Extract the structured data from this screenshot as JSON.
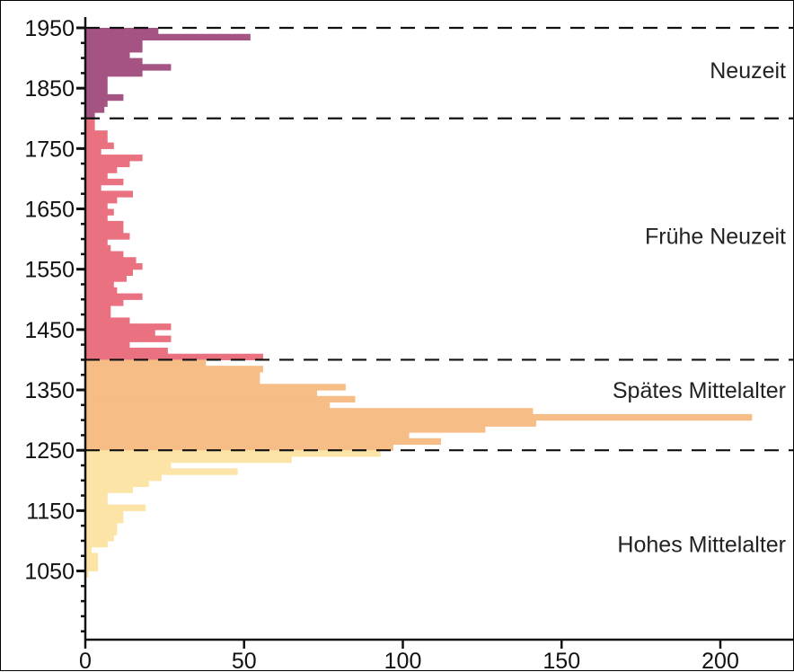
{
  "chart_data": {
    "type": "bar",
    "orientation": "horizontal",
    "bin_years": 10,
    "y_axis_ticks": [
      "1950",
      "1850",
      "1750",
      "1650",
      "1550",
      "1450",
      "1350",
      "1250",
      "1150",
      "1050"
    ],
    "x_axis_ticks": [
      "0",
      "50",
      "100",
      "150",
      "200"
    ],
    "xlim": [
      0,
      220
    ],
    "ylim": [
      940,
      1950
    ],
    "period_boundaries": [
      1800,
      1400,
      1250,
      1950
    ],
    "colors": {
      "Neuzeit": "#a45383",
      "Frühe Neuzeit": "#ea7180",
      "Spätes Mittelalter": "#f7bd86",
      "Hohes Mittelalter": "#fbe4a6"
    },
    "series": [
      {
        "name": "Neuzeit",
        "label": "Neuzeit",
        "label_year": 1880,
        "bins": [
          [
            1945,
            23
          ],
          [
            1935,
            52
          ],
          [
            1925,
            18
          ],
          [
            1915,
            18
          ],
          [
            1905,
            14
          ],
          [
            1895,
            18
          ],
          [
            1885,
            27
          ],
          [
            1875,
            18
          ],
          [
            1865,
            7
          ],
          [
            1855,
            7
          ],
          [
            1845,
            7
          ],
          [
            1835,
            12
          ],
          [
            1825,
            7
          ],
          [
            1815,
            6
          ],
          [
            1805,
            3
          ]
        ]
      },
      {
        "name": "Frühe Neuzeit",
        "label": "Frühe Neuzeit",
        "label_year": 1605,
        "bins": [
          [
            1795,
            3
          ],
          [
            1785,
            3
          ],
          [
            1775,
            7
          ],
          [
            1765,
            7
          ],
          [
            1755,
            9
          ],
          [
            1745,
            5
          ],
          [
            1735,
            18
          ],
          [
            1725,
            14
          ],
          [
            1715,
            10
          ],
          [
            1705,
            7
          ],
          [
            1695,
            12
          ],
          [
            1685,
            5
          ],
          [
            1675,
            15
          ],
          [
            1665,
            10
          ],
          [
            1655,
            7
          ],
          [
            1645,
            9
          ],
          [
            1635,
            7
          ],
          [
            1625,
            12
          ],
          [
            1615,
            12
          ],
          [
            1605,
            14
          ],
          [
            1595,
            7
          ],
          [
            1585,
            8
          ],
          [
            1575,
            12
          ],
          [
            1565,
            16
          ],
          [
            1555,
            18
          ],
          [
            1545,
            15
          ],
          [
            1535,
            13
          ],
          [
            1525,
            9
          ],
          [
            1515,
            10
          ],
          [
            1505,
            18
          ],
          [
            1495,
            12
          ],
          [
            1485,
            8
          ],
          [
            1475,
            8
          ],
          [
            1465,
            14
          ],
          [
            1455,
            27
          ],
          [
            1445,
            22
          ],
          [
            1435,
            27
          ],
          [
            1425,
            14
          ],
          [
            1415,
            26
          ],
          [
            1405,
            56
          ]
        ]
      },
      {
        "name": "Spätes Mittelalter",
        "label": "Spätes Mittelalter",
        "label_year": 1350,
        "bins": [
          [
            1395,
            38
          ],
          [
            1385,
            56
          ],
          [
            1375,
            55
          ],
          [
            1365,
            55
          ],
          [
            1355,
            82
          ],
          [
            1345,
            73
          ],
          [
            1335,
            85
          ],
          [
            1325,
            77
          ],
          [
            1315,
            141
          ],
          [
            1305,
            210
          ],
          [
            1295,
            142
          ],
          [
            1285,
            126
          ],
          [
            1275,
            102
          ],
          [
            1265,
            112
          ],
          [
            1255,
            97
          ]
        ]
      },
      {
        "name": "Hohes Mittelalter",
        "label": "Hohes Mittelalter",
        "label_year": 1095,
        "bins": [
          [
            1245,
            93
          ],
          [
            1235,
            65
          ],
          [
            1225,
            27
          ],
          [
            1215,
            48
          ],
          [
            1205,
            24
          ],
          [
            1195,
            20
          ],
          [
            1185,
            15
          ],
          [
            1175,
            7
          ],
          [
            1165,
            7
          ],
          [
            1155,
            19
          ],
          [
            1145,
            12
          ],
          [
            1135,
            12
          ],
          [
            1125,
            10
          ],
          [
            1115,
            10
          ],
          [
            1105,
            9
          ],
          [
            1095,
            7
          ],
          [
            1085,
            2
          ],
          [
            1075,
            4
          ],
          [
            1065,
            4
          ],
          [
            1055,
            4
          ],
          [
            1045,
            1
          ]
        ]
      }
    ]
  }
}
